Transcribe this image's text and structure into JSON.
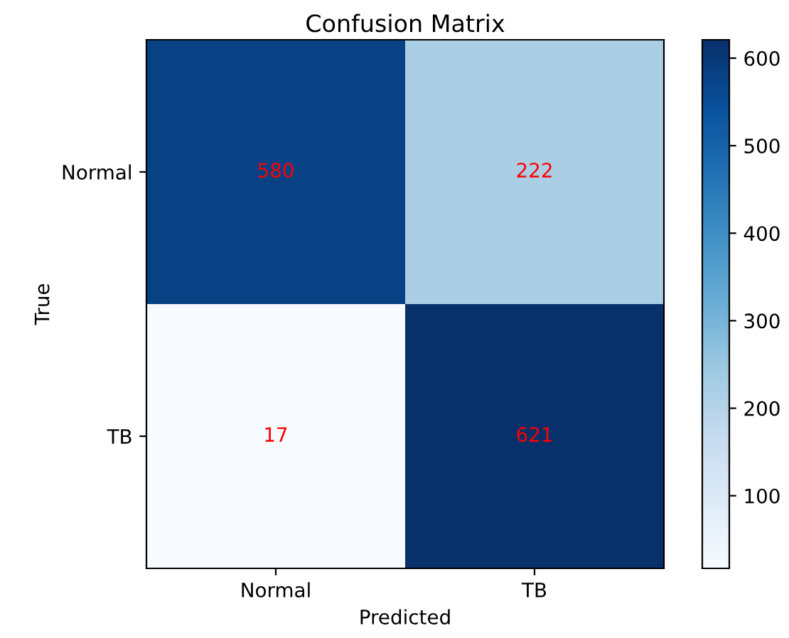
{
  "chart_data": {
    "type": "heatmap",
    "title": "Confusion Matrix",
    "xlabel": "Predicted",
    "ylabel": "True",
    "categories": [
      "Normal",
      "TB"
    ],
    "y_categories": [
      "Normal",
      "TB"
    ],
    "cells": [
      [
        580,
        222
      ],
      [
        17,
        621
      ]
    ],
    "data_labels": true,
    "clim": [
      17,
      621
    ],
    "cticks": [
      100,
      200,
      300,
      400,
      500,
      600
    ]
  }
}
